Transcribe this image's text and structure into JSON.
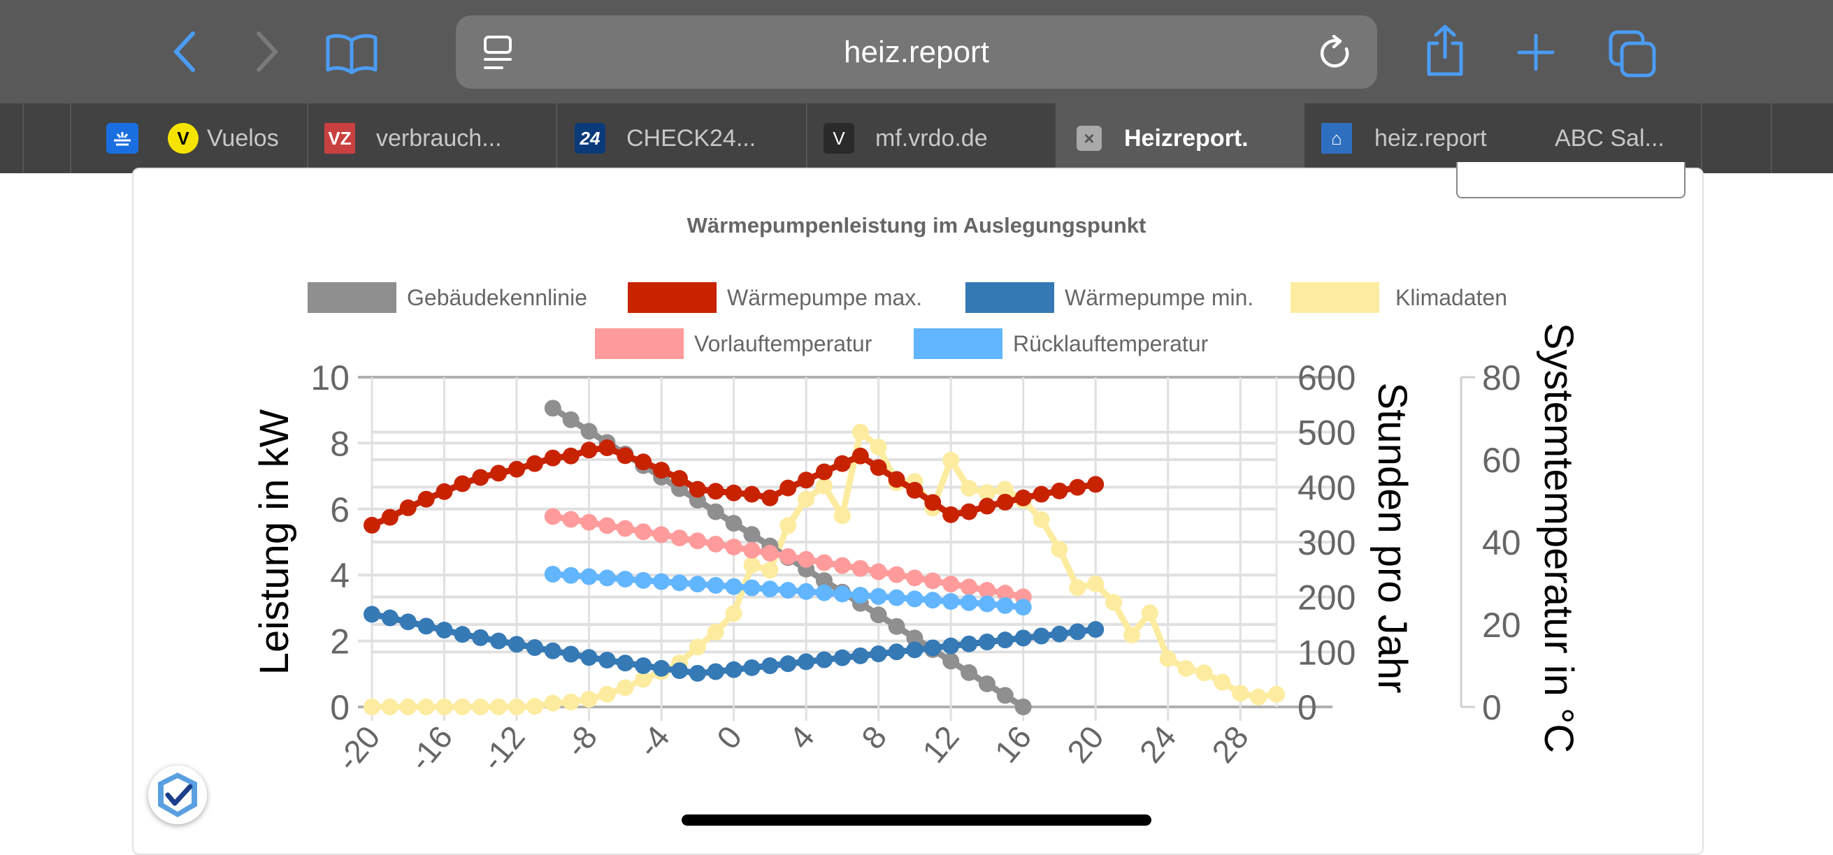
{
  "browser": {
    "url": "heiz.report",
    "icons": {
      "back": "chevron-left-icon",
      "forward": "chevron-right-icon",
      "bookmarks": "book-icon",
      "reader": "page-menu-icon",
      "reload": "reload-icon",
      "share": "share-icon",
      "new_tab": "plus-icon",
      "tabs": "tabs-icon"
    },
    "accent": "#4b9cf5"
  },
  "tabs": [
    {
      "label": "Vuelos",
      "icon_text": "V",
      "icon_color": "#f5e400",
      "active": false
    },
    {
      "label": "verbrauch...",
      "icon_text": "VZ",
      "icon_color": "#c94040",
      "active": false
    },
    {
      "label": "CHECK24...",
      "icon_text": "24",
      "icon_color": "#0a3a7a",
      "active": false
    },
    {
      "label": "mf.vrdo.de",
      "icon_text": "V",
      "icon_color": "#2a2a2a",
      "active": false
    },
    {
      "label": "Heizreport.",
      "icon_text": "×",
      "icon_color": "#aaaaaa",
      "active": true
    },
    {
      "label": "heiz.report",
      "icon_text": "⌂",
      "icon_color": "#2f6fc0",
      "active": false
    },
    {
      "label": "ABC Sal...",
      "icon_text": "",
      "icon_color": "",
      "active": false
    }
  ],
  "chart_data": {
    "type": "line",
    "title": "Wärmepumpenleistung im Auslegungspunkt",
    "xlim": [
      -20,
      30
    ],
    "xticks": [
      -20,
      -16,
      -12,
      -8,
      -4,
      0,
      4,
      8,
      12,
      16,
      20,
      24,
      28
    ],
    "axes": {
      "left": {
        "label": "Leistung in kW",
        "ylim": [
          0,
          10
        ],
        "ticks": [
          0,
          2,
          4,
          6,
          8,
          10
        ]
      },
      "right1": {
        "label": "Stunden pro Jahr",
        "ylim": [
          0,
          600
        ],
        "ticks": [
          0,
          100,
          200,
          300,
          400,
          500,
          600
        ]
      },
      "right2": {
        "label": "Systemtemperatur in °C",
        "ylim": [
          0,
          80
        ],
        "ticks": [
          0,
          20,
          40,
          60,
          80
        ]
      }
    },
    "legend_position": "top",
    "series": [
      {
        "name": "Gebäudekennlinie",
        "axis": "left",
        "color": "#8f8f8f",
        "x_start": -10,
        "values": [
          9.06,
          8.71,
          8.36,
          8.02,
          7.67,
          7.32,
          6.97,
          6.62,
          6.27,
          5.92,
          5.57,
          5.23,
          4.88,
          4.53,
          4.18,
          3.83,
          3.48,
          3.14,
          2.79,
          2.44,
          2.09,
          1.74,
          1.39,
          1.04,
          0.7,
          0.35,
          0
        ]
      },
      {
        "name": "Wärmepumpe max.",
        "axis": "left",
        "color": "#c82300",
        "x_start": -20,
        "values": [
          5.51,
          5.75,
          6.04,
          6.3,
          6.53,
          6.77,
          6.96,
          7.09,
          7.21,
          7.38,
          7.55,
          7.61,
          7.79,
          7.86,
          7.62,
          7.43,
          7.18,
          6.93,
          6.6,
          6.54,
          6.49,
          6.45,
          6.34,
          6.64,
          6.88,
          7.13,
          7.38,
          7.61,
          7.26,
          6.9,
          6.57,
          6.2,
          5.83,
          5.92,
          6.09,
          6.21,
          6.34,
          6.45,
          6.55,
          6.66,
          6.75
        ]
      },
      {
        "name": "Wärmepumpe min.",
        "axis": "left",
        "color": "#3579b5",
        "x_start": -20,
        "values": [
          2.81,
          2.7,
          2.58,
          2.45,
          2.33,
          2.2,
          2.1,
          2.0,
          1.9,
          1.8,
          1.7,
          1.6,
          1.5,
          1.42,
          1.33,
          1.25,
          1.17,
          1.1,
          1.02,
          1.07,
          1.13,
          1.19,
          1.25,
          1.31,
          1.37,
          1.43,
          1.49,
          1.55,
          1.61,
          1.67,
          1.73,
          1.79,
          1.85,
          1.91,
          1.97,
          2.03,
          2.09,
          2.15,
          2.21,
          2.28,
          2.35
        ]
      },
      {
        "name": "Klimadaten",
        "axis": "right1",
        "color": "#fdeca0",
        "x_start": -20,
        "values": [
          0,
          0,
          0,
          0,
          0,
          0,
          0,
          0,
          0,
          1,
          7,
          9,
          14,
          23,
          35,
          50,
          64,
          80,
          109,
          136,
          170,
          258,
          249,
          330,
          378,
          402,
          348,
          500,
          473,
          408,
          410,
          362,
          449,
          398,
          390,
          396,
          376,
          341,
          287,
          217,
          224,
          190,
          131,
          171,
          88,
          70,
          62,
          45,
          25,
          18,
          23
        ]
      },
      {
        "name": "Vorlauftemperatur",
        "axis": "right2",
        "color": "#ff9b9b",
        "x_start": -10,
        "values": [
          46.2,
          45.5,
          44.8,
          44.0,
          43.3,
          42.5,
          41.8,
          41.0,
          40.3,
          39.5,
          38.8,
          38.0,
          37.3,
          36.5,
          35.8,
          35.0,
          34.3,
          33.6,
          32.8,
          32.1,
          31.3,
          30.6,
          29.8,
          29.1,
          28.3,
          27.6,
          26.7
        ]
      },
      {
        "name": "Rücklauftemperatur",
        "axis": "right2",
        "color": "#62b5ff",
        "x_start": -10,
        "values": [
          32.2,
          31.9,
          31.6,
          31.3,
          31.0,
          30.7,
          30.4,
          30.1,
          29.8,
          29.5,
          29.2,
          28.9,
          28.6,
          28.3,
          28.0,
          27.7,
          27.4,
          27.1,
          26.8,
          26.5,
          26.2,
          25.9,
          25.6,
          25.3,
          25.0,
          24.6,
          24.2
        ]
      }
    ]
  }
}
